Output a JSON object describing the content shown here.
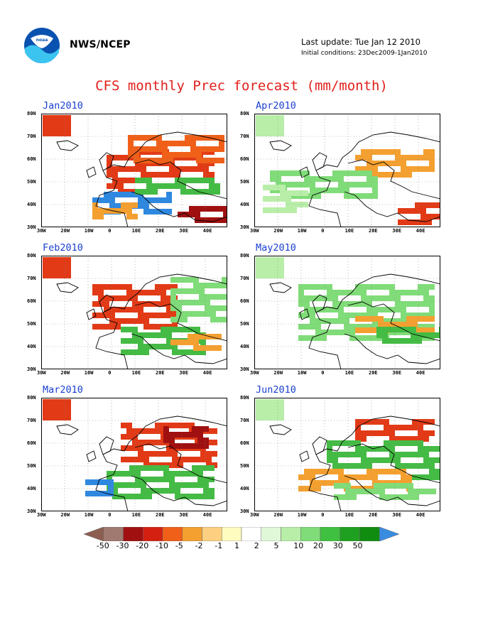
{
  "header": {
    "agency": "NWS/NCEP",
    "last_update": "Last update: Tue Jan 12 2010",
    "initial_conditions": "Initial conditions: 23Dec2009-1Jan2010",
    "title": "CFS monthly Prec forecast (mm/month)"
  },
  "axes": {
    "lat_labels": [
      "80N",
      "70N",
      "60N",
      "50N",
      "40N",
      "30N"
    ],
    "lon_labels": [
      "30W",
      "20W",
      "10W",
      "0",
      "10E",
      "20E",
      "30E",
      "40E"
    ]
  },
  "panels": [
    {
      "label": "Jan2010"
    },
    {
      "label": "Apr2010"
    },
    {
      "label": "Feb2010"
    },
    {
      "label": "May2010"
    },
    {
      "label": "Mar2010"
    },
    {
      "label": "Jun2010"
    }
  ],
  "colorbar": {
    "labels": [
      "-50",
      "-30",
      "-20",
      "-10",
      "-5",
      "-2",
      "-1",
      "1",
      "2",
      "5",
      "10",
      "20",
      "30",
      "50"
    ],
    "colors": [
      "#8c5e50",
      "#a07a70",
      "#a01010",
      "#d42010",
      "#f06018",
      "#f4a030",
      "#fcd080",
      "#fffcc0",
      "#ffffff",
      "#e0f8d8",
      "#b8eea8",
      "#80dc78",
      "#40c040",
      "#20a020",
      "#108c10",
      "#3a8ce0"
    ]
  },
  "colors": {
    "title_red": "#e0201c",
    "panel_label_blue": "#1a3fd0"
  }
}
